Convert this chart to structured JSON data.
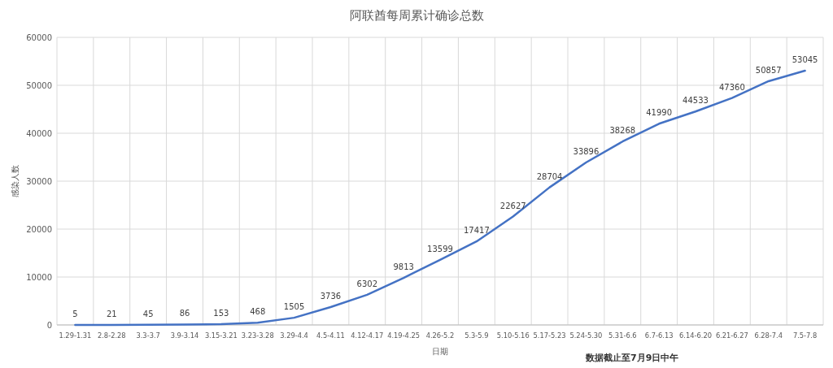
{
  "chart_data": {
    "type": "line",
    "title": "阿联酋每周累计确诊总数",
    "xlabel": "日期",
    "ylabel": "感染人数",
    "categories": [
      "1.29-1.31",
      "2.8-2.28",
      "3.3-3.7",
      "3.9-3.14",
      "3.15-3.21",
      "3.23-3.28",
      "3.29-4.4",
      "4.5-4.11",
      "4.12-4.17",
      "4.19-4.25",
      "4.26-5.2",
      "5.3-5.9",
      "5.10-5.16",
      "5.17-5.23",
      "5.24-5.30",
      "5.31-6.6",
      "6.7-6.13",
      "6.14-6.20",
      "6.21-6.27",
      "6.28-7.4",
      "7.5-7.8"
    ],
    "values": [
      5,
      21,
      45,
      86,
      153,
      468,
      1505,
      3736,
      6302,
      9813,
      13599,
      17417,
      22627,
      28704,
      33896,
      38268,
      41990,
      44533,
      47360,
      50857,
      53045
    ],
    "color": "#4472c4",
    "ylim": [
      0,
      60000
    ],
    "yticks": [
      0,
      10000,
      20000,
      30000,
      40000,
      50000,
      60000
    ],
    "grid": true,
    "data_labels": true,
    "legend": false,
    "marker": "none",
    "line_style": "solid",
    "annotations": [
      "数据截止至7月9日中午"
    ]
  }
}
